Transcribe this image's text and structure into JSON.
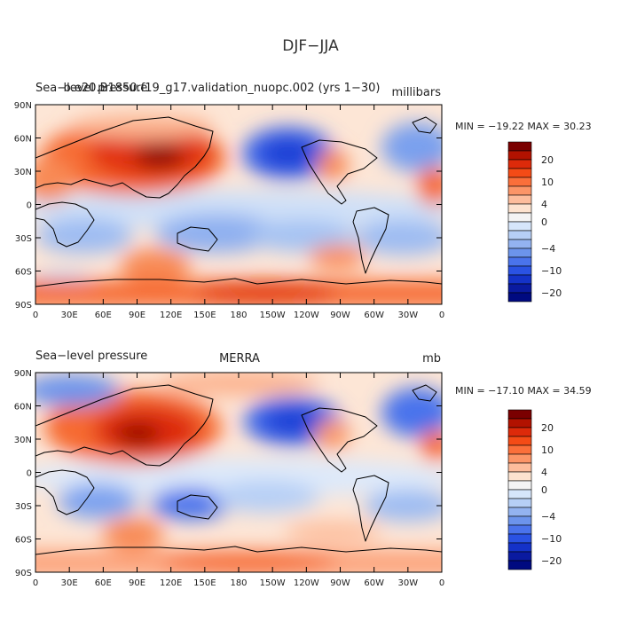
{
  "figure": {
    "title": "DJF−JJA"
  },
  "panels": [
    {
      "id": "top",
      "left_label": "Sea−level pressure",
      "center_label": "b.e20.B1850.f19_g17.validation_nuopc.002 (yrs 1−30)",
      "units": "millibars",
      "stats": "MIN = −19.22  MAX =  30.23",
      "min": -19.22,
      "max": 30.23
    },
    {
      "id": "bottom",
      "left_label": "Sea−level pressure",
      "center_label": "MERRA",
      "units": "mb",
      "stats": "MIN = −17.10  MAX =  34.59",
      "min": -17.1,
      "max": 34.59
    }
  ],
  "axes": {
    "x_ticks": [
      "0",
      "30E",
      "60E",
      "90E",
      "120E",
      "150E",
      "180",
      "150W",
      "120W",
      "90W",
      "60W",
      "30W",
      "0"
    ],
    "y_ticks": [
      "90N",
      "60N",
      "30N",
      "0",
      "30S",
      "60S",
      "90S"
    ]
  },
  "colorbar": {
    "labels": [
      "20",
      "10",
      "4",
      "0",
      "−4",
      "−10",
      "−20"
    ],
    "colors": [
      "#7a0000",
      "#b21200",
      "#dd2a0a",
      "#f44b16",
      "#fb6f3a",
      "#fc9567",
      "#fdbd9c",
      "#fde3cf",
      "#f4f4f4",
      "#d6e6fb",
      "#b6cff6",
      "#93b3f0",
      "#6c94ec",
      "#4a73ec",
      "#2a52e3",
      "#1432c8",
      "#0a1aa0",
      "#000a80"
    ]
  },
  "colors": {
    "land_outline": "#000000",
    "frame": "#000000"
  }
}
